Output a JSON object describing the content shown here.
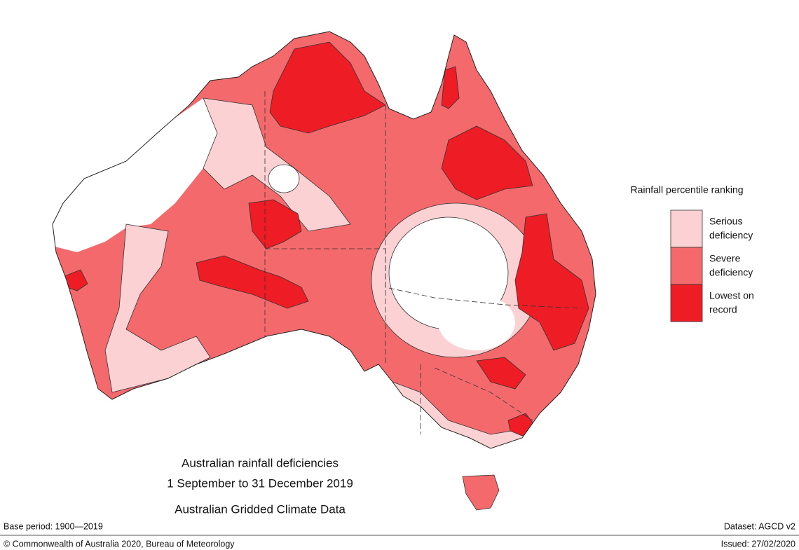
{
  "title": {
    "lines": [
      "Australian rainfall deficiencies",
      "1 September to 31 December 2019",
      "Australian Gridded Climate Data"
    ]
  },
  "legend": {
    "title": "Rainfall percentile ranking",
    "items": [
      {
        "label": [
          "Serious",
          "deficiency"
        ],
        "color": "#fcd1d4"
      },
      {
        "label": [
          "Severe",
          "deficiency"
        ],
        "color": "#f46a6c"
      },
      {
        "label": [
          "Lowest on",
          "record"
        ],
        "color": "#ee1c24"
      }
    ]
  },
  "footer": {
    "base_period": "Base period: 1900—2019",
    "dataset": "Dataset: AGCD v2",
    "copyright": "© Commonwealth of Australia 2020, Bureau of Meteorology",
    "issued": "Issued: 27/02/2020"
  }
}
